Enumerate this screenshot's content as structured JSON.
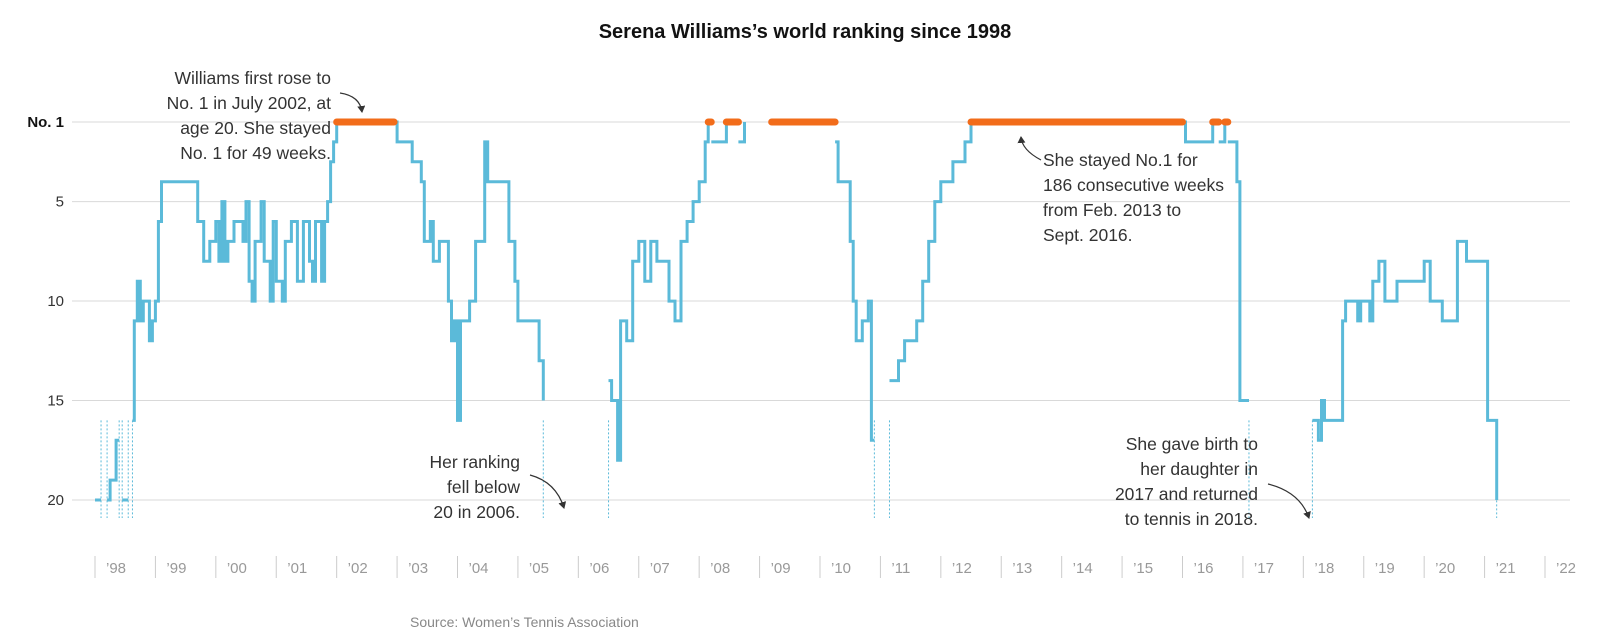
{
  "chart_data": {
    "type": "line",
    "title": "Serena Williams’s world ranking since 1998",
    "source": "Source: Women’s Tennis Association",
    "y_ticks": [
      {
        "value": 1,
        "label": "No. 1"
      },
      {
        "value": 5,
        "label": "5"
      },
      {
        "value": 10,
        "label": "10"
      },
      {
        "value": 15,
        "label": "15"
      },
      {
        "value": 20,
        "label": "20"
      }
    ],
    "ylim": [
      1,
      20
    ],
    "x_ticks": [
      {
        "year": 1998,
        "label": "’98"
      },
      {
        "year": 1999,
        "label": "’99"
      },
      {
        "year": 2000,
        "label": "’00"
      },
      {
        "year": 2001,
        "label": "’01"
      },
      {
        "year": 2002,
        "label": "’02"
      },
      {
        "year": 2003,
        "label": "’03"
      },
      {
        "year": 2004,
        "label": "’04"
      },
      {
        "year": 2005,
        "label": "’05"
      },
      {
        "year": 2006,
        "label": "’06"
      },
      {
        "year": 2007,
        "label": "’07"
      },
      {
        "year": 2008,
        "label": "’08"
      },
      {
        "year": 2009,
        "label": "’09"
      },
      {
        "year": 2010,
        "label": "’10"
      },
      {
        "year": 2011,
        "label": "’11"
      },
      {
        "year": 2012,
        "label": "’12"
      },
      {
        "year": 2013,
        "label": "’13"
      },
      {
        "year": 2014,
        "label": "’14"
      },
      {
        "year": 2015,
        "label": "’15"
      },
      {
        "year": 2016,
        "label": "’16"
      },
      {
        "year": 2017,
        "label": "’17"
      },
      {
        "year": 2018,
        "label": "’18"
      },
      {
        "year": 2019,
        "label": "’19"
      },
      {
        "year": 2020,
        "label": "’20"
      },
      {
        "year": 2021,
        "label": "’21"
      },
      {
        "year": 2022,
        "label": "’22"
      }
    ],
    "xlim": [
      1998.0,
      2022.0
    ],
    "colors": {
      "ranking_line": "#5bbad9",
      "number_one": "#f26c1a",
      "grid": "#d9d9d9",
      "tick_mark": "#cccccc"
    },
    "ranking_segments": [
      [
        [
          1998.0,
          20
        ],
        [
          1998.1,
          20
        ]
      ],
      [
        [
          1998.2,
          20
        ],
        [
          1998.25,
          19
        ],
        [
          1998.35,
          17
        ],
        [
          1998.4,
          17
        ]
      ],
      [
        [
          1998.45,
          20
        ],
        [
          1998.55,
          20
        ]
      ],
      [
        [
          1998.62,
          16
        ],
        [
          1998.65,
          11
        ],
        [
          1998.7,
          9
        ],
        [
          1998.75,
          11
        ],
        [
          1998.8,
          10
        ],
        [
          1998.9,
          12
        ],
        [
          1998.95,
          11
        ],
        [
          1999.0,
          10
        ],
        [
          1999.05,
          6
        ],
        [
          1999.1,
          4
        ],
        [
          1999.6,
          4
        ],
        [
          1999.7,
          6
        ],
        [
          1999.8,
          8
        ],
        [
          1999.9,
          7
        ],
        [
          2000.0,
          6
        ],
        [
          2000.05,
          8
        ],
        [
          2000.1,
          5
        ],
        [
          2000.15,
          8
        ],
        [
          2000.2,
          7
        ],
        [
          2000.3,
          6
        ],
        [
          2000.45,
          7
        ],
        [
          2000.5,
          5
        ],
        [
          2000.55,
          9
        ],
        [
          2000.6,
          10
        ],
        [
          2000.65,
          7
        ],
        [
          2000.75,
          5
        ],
        [
          2000.8,
          8
        ],
        [
          2000.9,
          10
        ],
        [
          2000.95,
          6
        ],
        [
          2001.0,
          9
        ],
        [
          2001.1,
          10
        ],
        [
          2001.15,
          7
        ],
        [
          2001.25,
          6
        ],
        [
          2001.35,
          9
        ],
        [
          2001.45,
          6
        ],
        [
          2001.55,
          8
        ],
        [
          2001.6,
          9
        ],
        [
          2001.65,
          6
        ],
        [
          2001.75,
          9
        ],
        [
          2001.8,
          6
        ],
        [
          2001.85,
          5
        ],
        [
          2001.9,
          3
        ],
        [
          2001.95,
          2
        ],
        [
          2002.0,
          1
        ]
      ],
      [
        [
          2002.95,
          1
        ],
        [
          2003.0,
          2
        ],
        [
          2003.25,
          3
        ],
        [
          2003.4,
          4
        ],
        [
          2003.45,
          7
        ],
        [
          2003.55,
          6
        ],
        [
          2003.6,
          8
        ],
        [
          2003.7,
          7
        ],
        [
          2003.85,
          10
        ],
        [
          2003.9,
          12
        ],
        [
          2003.95,
          11
        ],
        [
          2004.0,
          16
        ],
        [
          2004.05,
          11
        ],
        [
          2004.2,
          10
        ],
        [
          2004.3,
          7
        ],
        [
          2004.45,
          2
        ],
        [
          2004.5,
          4
        ],
        [
          2004.85,
          7
        ],
        [
          2004.95,
          9
        ],
        [
          2005.0,
          11
        ],
        [
          2005.3,
          11
        ],
        [
          2005.35,
          13
        ],
        [
          2005.42,
          15
        ]
      ],
      [
        [
          2006.5,
          14
        ],
        [
          2006.55,
          15
        ],
        [
          2006.65,
          18
        ],
        [
          2006.7,
          11
        ],
        [
          2006.8,
          12
        ],
        [
          2006.9,
          8
        ],
        [
          2007.0,
          7
        ],
        [
          2007.1,
          9
        ],
        [
          2007.2,
          7
        ],
        [
          2007.3,
          8
        ],
        [
          2007.5,
          10
        ],
        [
          2007.6,
          11
        ],
        [
          2007.7,
          7
        ],
        [
          2007.8,
          6
        ],
        [
          2007.9,
          5
        ],
        [
          2008.0,
          4
        ],
        [
          2008.1,
          2
        ],
        [
          2008.15,
          1
        ]
      ],
      [
        [
          2008.2,
          2
        ],
        [
          2008.45,
          1
        ]
      ],
      [
        [
          2008.65,
          2
        ],
        [
          2008.75,
          1
        ]
      ],
      [
        [
          2009.2,
          1
        ]
      ],
      [
        [
          2010.25,
          2
        ],
        [
          2010.3,
          4
        ],
        [
          2010.5,
          7
        ],
        [
          2010.55,
          10
        ],
        [
          2010.6,
          12
        ],
        [
          2010.7,
          11
        ],
        [
          2010.8,
          10
        ],
        [
          2010.85,
          17
        ],
        [
          2010.9,
          17
        ]
      ],
      [
        [
          2011.15,
          14
        ],
        [
          2011.3,
          13
        ],
        [
          2011.4,
          12
        ],
        [
          2011.6,
          11
        ],
        [
          2011.7,
          9
        ],
        [
          2011.8,
          7
        ],
        [
          2011.9,
          5
        ],
        [
          2012.0,
          4
        ],
        [
          2012.2,
          3
        ],
        [
          2012.4,
          2
        ],
        [
          2012.5,
          1
        ]
      ],
      [
        [
          2016.0,
          1
        ],
        [
          2016.05,
          2
        ],
        [
          2016.45,
          2
        ],
        [
          2016.5,
          1
        ]
      ],
      [
        [
          2016.6,
          2
        ],
        [
          2016.7,
          1
        ]
      ],
      [
        [
          2016.75,
          2
        ],
        [
          2016.9,
          4
        ],
        [
          2016.95,
          15
        ],
        [
          2017.1,
          15
        ]
      ],
      [
        [
          2018.15,
          16
        ],
        [
          2018.25,
          17
        ],
        [
          2018.3,
          15
        ],
        [
          2018.35,
          16
        ],
        [
          2018.6,
          16
        ],
        [
          2018.65,
          11
        ],
        [
          2018.7,
          10
        ],
        [
          2018.9,
          11
        ],
        [
          2018.95,
          10
        ],
        [
          2019.1,
          11
        ],
        [
          2019.15,
          9
        ],
        [
          2019.25,
          8
        ],
        [
          2019.35,
          10
        ],
        [
          2019.55,
          9
        ],
        [
          2020.0,
          8
        ],
        [
          2020.1,
          10
        ],
        [
          2020.3,
          11
        ],
        [
          2020.5,
          11
        ],
        [
          2020.55,
          7
        ],
        [
          2020.7,
          8
        ],
        [
          2020.95,
          8
        ],
        [
          2021.05,
          16
        ],
        [
          2021.1,
          16
        ],
        [
          2021.2,
          20
        ]
      ]
    ],
    "number_one_spans": [
      [
        2002.0,
        2002.95
      ],
      [
        2008.15,
        2008.2
      ],
      [
        2008.45,
        2008.65
      ],
      [
        2009.2,
        2010.25
      ],
      [
        2012.5,
        2016.0
      ],
      [
        2016.5,
        2016.6
      ],
      [
        2016.7,
        2016.75
      ]
    ],
    "gaps": [
      1998.1,
      1998.2,
      1998.4,
      1998.45,
      1998.55,
      1998.62,
      2005.42,
      2006.5,
      2010.9,
      2011.15,
      2017.1,
      2018.15,
      2021.2
    ],
    "annotations": [
      {
        "id": "first-no1",
        "anchor": "end",
        "lines": [
          "Williams first rose to",
          "No. 1 in July 2002, at",
          "age 20. She stayed",
          "No. 1 for 49 weeks."
        ]
      },
      {
        "id": "186-weeks",
        "anchor": "start",
        "lines": [
          "She stayed No.1 for",
          "186 consecutive weeks",
          "from Feb. 2013 to",
          "Sept. 2016."
        ]
      },
      {
        "id": "fell-below-20",
        "anchor": "end",
        "lines": [
          "Her ranking",
          "fell below",
          "20 in 2006."
        ]
      },
      {
        "id": "gave-birth",
        "anchor": "end",
        "lines": [
          "She gave birth to",
          "her daughter in",
          "2017 and returned",
          "to tennis in 2018."
        ]
      }
    ]
  }
}
